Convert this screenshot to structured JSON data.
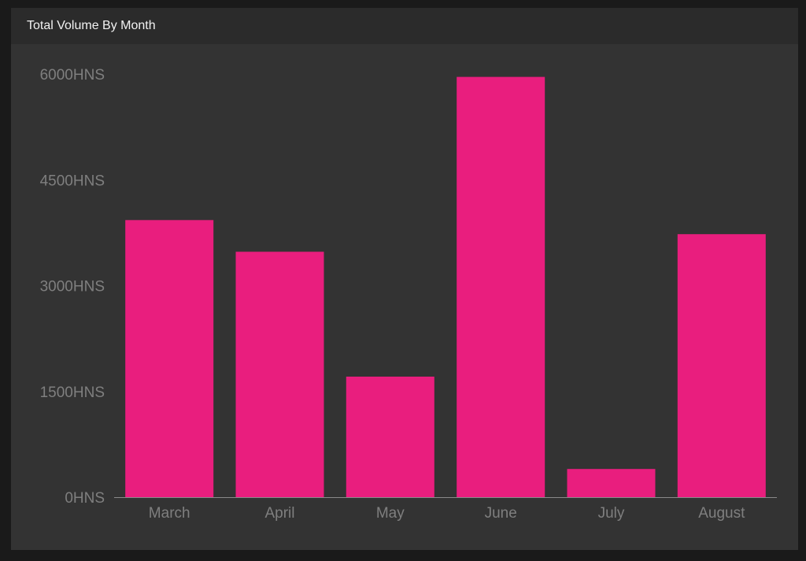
{
  "panel": {
    "title": "Total Volume By Month"
  },
  "chart_data": {
    "type": "bar",
    "categories": [
      "March",
      "April",
      "May",
      "June",
      "July",
      "August"
    ],
    "values": [
      3930,
      3480,
      1710,
      5960,
      400,
      3730
    ],
    "yticks": [
      0,
      1500,
      3000,
      4500,
      6000
    ],
    "ytick_labels": [
      "0HNS",
      "1500HNS",
      "3000HNS",
      "4500HNS",
      "6000HNS"
    ],
    "ylim": [
      0,
      6000
    ],
    "unit": "HNS",
    "bar_color": "#e91e7e",
    "background_color": "#333333",
    "header_color": "#2b2b2b",
    "grid": false
  }
}
